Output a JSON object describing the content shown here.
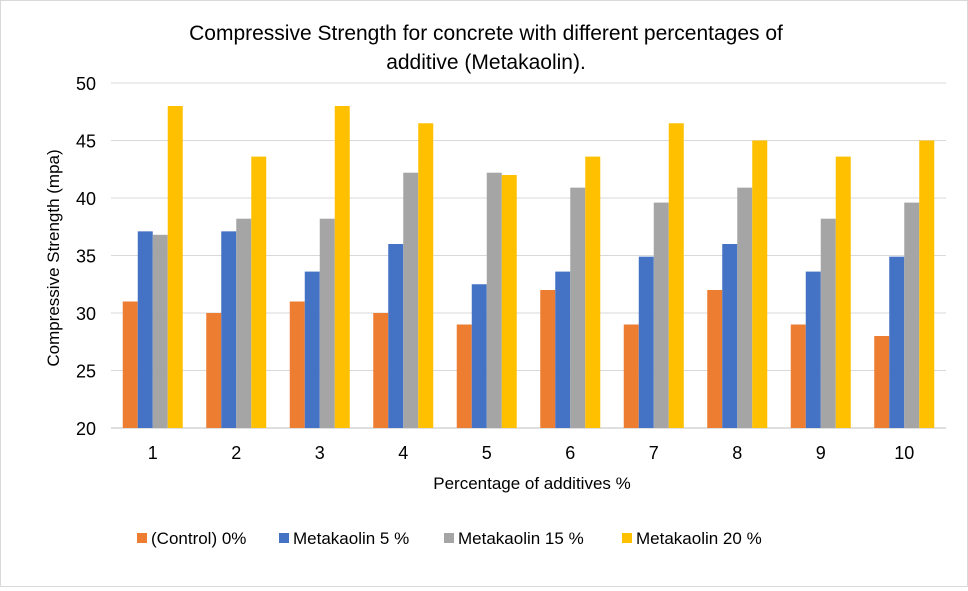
{
  "chart_data": {
    "type": "bar",
    "title_lines": [
      "Compressive Strength for concrete with different percentages of",
      "additive  (Metakaolin)."
    ],
    "xlabel": "Percentage of additives %",
    "ylabel": "Compressive Strength (mpa)",
    "ylim": [
      20,
      50
    ],
    "yticks": [
      20,
      25,
      30,
      35,
      40,
      45,
      50
    ],
    "grid": true,
    "legend_position": "bottom",
    "categories": [
      "1",
      "2",
      "3",
      "4",
      "5",
      "6",
      "7",
      "8",
      "9",
      "10"
    ],
    "series": [
      {
        "name": "(Control) 0%",
        "color": "#ED7D31",
        "values": [
          31,
          30,
          31,
          30,
          29,
          32,
          29,
          32,
          29,
          28
        ]
      },
      {
        "name": "Metakaolin 5 %",
        "color": "#4472C4",
        "values": [
          37.1,
          37.1,
          33.6,
          36,
          32.5,
          33.6,
          34.9,
          36,
          33.6,
          34.9
        ]
      },
      {
        "name": "Metakaolin 15 %",
        "color": "#A5A5A5",
        "values": [
          36.8,
          38.2,
          38.2,
          42.2,
          42.2,
          40.9,
          39.6,
          40.9,
          38.2,
          39.6
        ]
      },
      {
        "name": "Metakaolin 20 %",
        "color": "#FFC000",
        "values": [
          48,
          43.6,
          48,
          46.5,
          42,
          43.6,
          46.5,
          45,
          43.6,
          45
        ]
      }
    ]
  }
}
